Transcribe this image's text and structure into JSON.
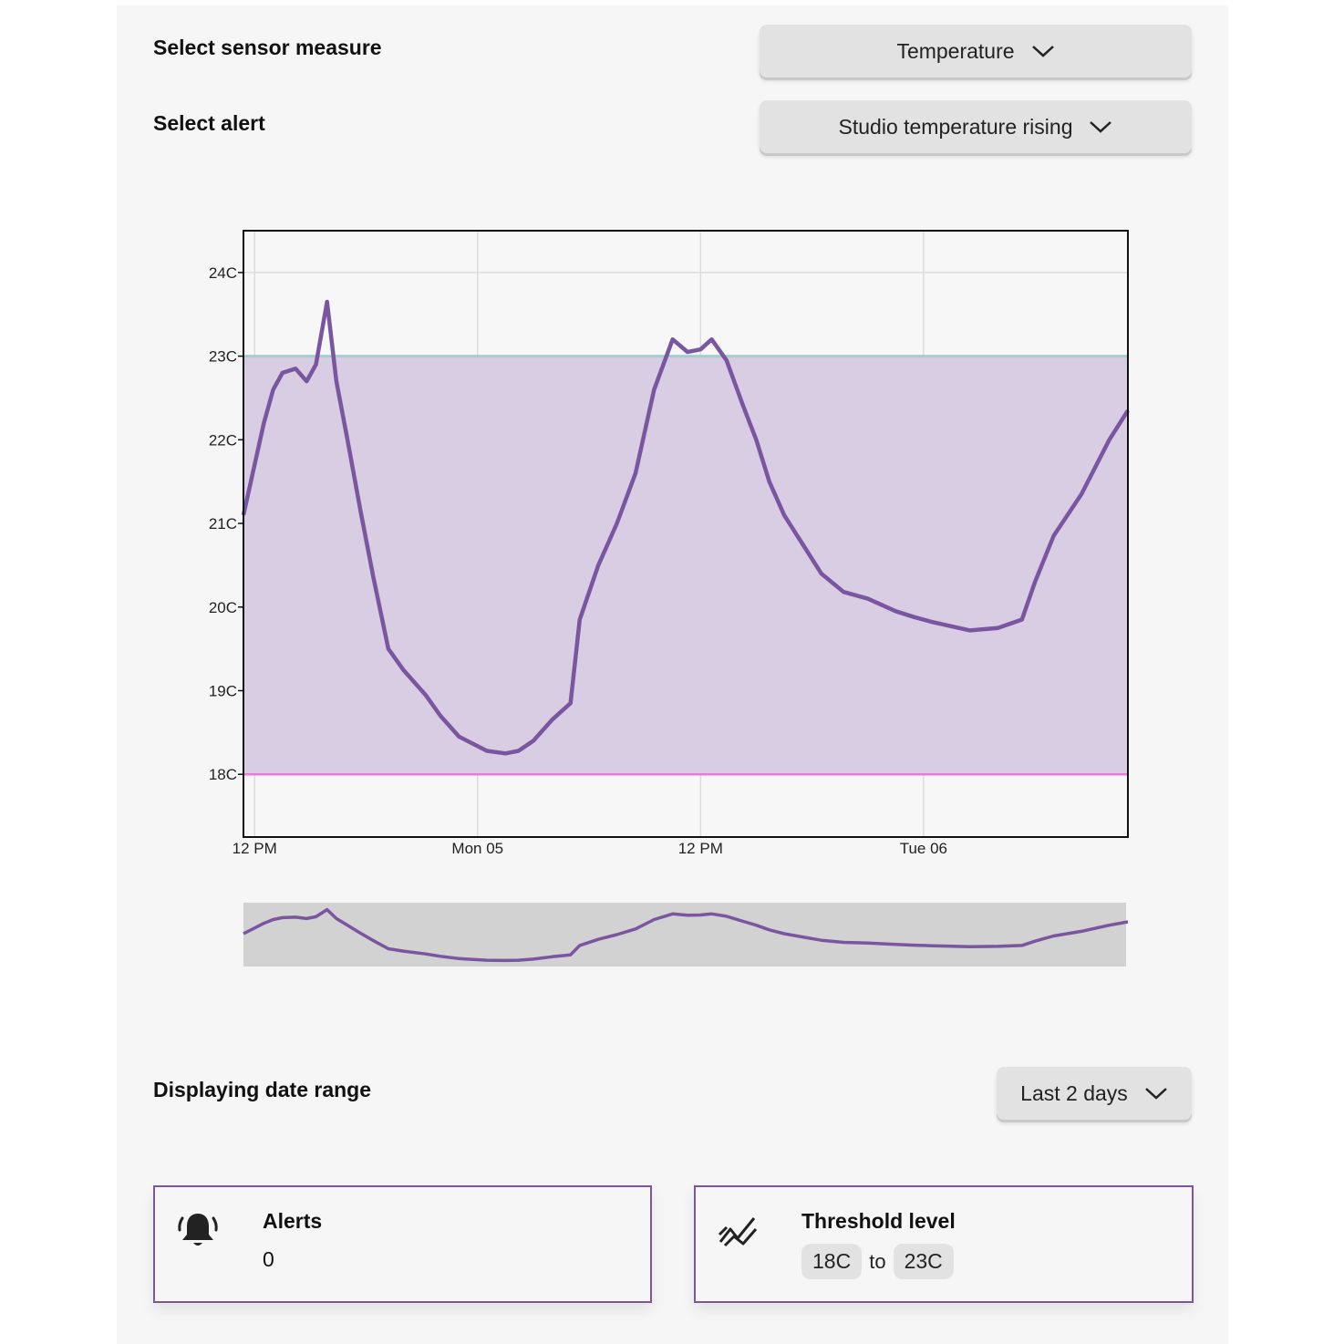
{
  "controls": {
    "sensor_label": "Select sensor measure",
    "sensor_value": "Temperature",
    "alert_label": "Select alert",
    "alert_value": "Studio temperature rising",
    "range_label": "Displaying date range",
    "range_value": "Last 2 days"
  },
  "icons": {
    "dropdown": "chevron-down-icon",
    "alerts": "bell-icon",
    "threshold": "trend-icon"
  },
  "colors": {
    "line": "#7a55a0",
    "band": "#d8cde2",
    "upper_threshold": "#9fd0cf",
    "lower_threshold": "#e47cd8",
    "navigator_bg": "#d2d2d2"
  },
  "chart_data": {
    "type": "line",
    "x_tick_labels": [
      "12 PM",
      "Mon 05",
      "12 PM",
      "Tue 06"
    ],
    "x_ticks": [
      0,
      12,
      24,
      36
    ],
    "xlim": [
      -0.6,
      47
    ],
    "y_tick_labels": [
      "24C",
      "23C",
      "22C",
      "21C",
      "20C",
      "19C",
      "18C"
    ],
    "y_ticks": [
      24,
      23,
      22,
      21,
      20,
      19,
      18
    ],
    "ylim": [
      17.25,
      24.5
    ],
    "thresholds": {
      "lower": 18,
      "upper": 23
    },
    "grid": true,
    "series": [
      {
        "points": [
          [
            -0.6,
            21.1
          ],
          [
            0.0,
            21.7
          ],
          [
            0.5,
            22.2
          ],
          [
            1.0,
            22.6
          ],
          [
            1.5,
            22.8
          ],
          [
            2.2,
            22.85
          ],
          [
            2.8,
            22.7
          ],
          [
            3.3,
            22.9
          ],
          [
            3.9,
            23.65
          ],
          [
            4.4,
            22.7
          ],
          [
            5.0,
            22.0
          ],
          [
            5.7,
            21.15
          ],
          [
            6.4,
            20.35
          ],
          [
            7.2,
            19.5
          ],
          [
            8.0,
            19.25
          ],
          [
            9.2,
            18.95
          ],
          [
            10.0,
            18.7
          ],
          [
            11.0,
            18.45
          ],
          [
            12.5,
            18.28
          ],
          [
            13.5,
            18.25
          ],
          [
            14.2,
            18.28
          ],
          [
            15.0,
            18.4
          ],
          [
            16.0,
            18.65
          ],
          [
            17.0,
            18.85
          ],
          [
            17.5,
            19.85
          ],
          [
            18.5,
            20.5
          ],
          [
            19.5,
            21.0
          ],
          [
            20.5,
            21.6
          ],
          [
            21.5,
            22.6
          ],
          [
            22.5,
            23.2
          ],
          [
            23.3,
            23.05
          ],
          [
            24.0,
            23.08
          ],
          [
            24.6,
            23.2
          ],
          [
            25.4,
            22.95
          ],
          [
            26.3,
            22.4
          ],
          [
            27.0,
            22.0
          ],
          [
            27.7,
            21.5
          ],
          [
            28.5,
            21.1
          ],
          [
            29.5,
            20.75
          ],
          [
            30.5,
            20.4
          ],
          [
            31.7,
            20.18
          ],
          [
            33.0,
            20.1
          ],
          [
            34.5,
            19.95
          ],
          [
            35.5,
            19.88
          ],
          [
            36.5,
            19.82
          ],
          [
            38.5,
            19.72
          ],
          [
            40.0,
            19.75
          ],
          [
            41.3,
            19.85
          ],
          [
            42.0,
            20.3
          ],
          [
            43.0,
            20.85
          ],
          [
            44.5,
            21.35
          ],
          [
            46.0,
            22.0
          ],
          [
            47.0,
            22.35
          ]
        ]
      }
    ]
  },
  "alerts_card": {
    "title": "Alerts",
    "value": "0"
  },
  "threshold_card": {
    "title": "Threshold level",
    "low": "18C",
    "to": "to",
    "high": "23C"
  }
}
